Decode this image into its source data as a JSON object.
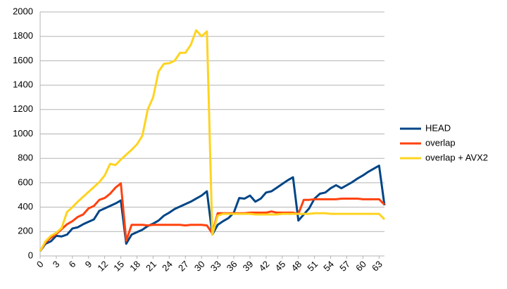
{
  "chart_data": {
    "type": "line",
    "x": [
      0,
      1,
      2,
      3,
      4,
      5,
      6,
      7,
      8,
      9,
      10,
      11,
      12,
      13,
      14,
      15,
      16,
      17,
      18,
      19,
      20,
      21,
      22,
      23,
      24,
      25,
      26,
      27,
      28,
      29,
      30,
      31,
      32,
      33,
      34,
      35,
      36,
      37,
      38,
      39,
      40,
      41,
      42,
      43,
      44,
      45,
      46,
      47,
      48,
      49,
      50,
      51,
      52,
      53,
      54,
      55,
      56,
      57,
      58,
      59,
      60,
      61,
      62,
      63,
      64
    ],
    "series": [
      {
        "name": "HEAD",
        "color": "#004586",
        "values": [
          40,
          100,
          120,
          165,
          160,
          175,
          225,
          235,
          260,
          280,
          300,
          370,
          390,
          410,
          430,
          455,
          100,
          175,
          195,
          215,
          245,
          265,
          290,
          330,
          355,
          385,
          405,
          425,
          445,
          470,
          495,
          530,
          175,
          255,
          285,
          310,
          355,
          475,
          470,
          495,
          445,
          470,
          520,
          530,
          560,
          590,
          620,
          645,
          290,
          340,
          390,
          470,
          510,
          520,
          555,
          580,
          555,
          580,
          605,
          635,
          660,
          690,
          715,
          740,
          415
        ]
      },
      {
        "name": "overlap",
        "color": "#ff420e",
        "values": [
          40,
          110,
          150,
          180,
          220,
          260,
          285,
          320,
          340,
          390,
          410,
          460,
          475,
          510,
          560,
          595,
          125,
          255,
          255,
          255,
          250,
          255,
          255,
          255,
          255,
          255,
          255,
          250,
          255,
          255,
          255,
          250,
          185,
          350,
          350,
          350,
          350,
          350,
          350,
          355,
          355,
          355,
          355,
          365,
          355,
          355,
          355,
          355,
          345,
          460,
          460,
          465,
          465,
          465,
          465,
          465,
          470,
          470,
          470,
          470,
          465,
          465,
          465,
          465,
          420
        ]
      },
      {
        "name": "overlap + AVX2",
        "color": "#ffd320",
        "values": [
          40,
          120,
          165,
          190,
          230,
          360,
          400,
          445,
          485,
          525,
          565,
          605,
          660,
          755,
          745,
          790,
          830,
          870,
          915,
          985,
          1200,
          1300,
          1510,
          1575,
          1580,
          1600,
          1665,
          1665,
          1730,
          1850,
          1800,
          1840,
          175,
          330,
          345,
          345,
          345,
          345,
          345,
          345,
          340,
          340,
          340,
          340,
          340,
          345,
          345,
          345,
          345,
          345,
          345,
          350,
          350,
          350,
          345,
          345,
          345,
          345,
          345,
          345,
          345,
          345,
          345,
          345,
          300
        ]
      }
    ],
    "xlim": [
      0,
      64
    ],
    "xticks": [
      0,
      3,
      6,
      9,
      12,
      15,
      18,
      21,
      24,
      27,
      30,
      33,
      36,
      39,
      42,
      45,
      48,
      51,
      54,
      57,
      60,
      63
    ],
    "ylim": [
      0,
      2000
    ],
    "yticks": [
      0,
      200,
      400,
      600,
      800,
      1000,
      1200,
      1400,
      1600,
      1800,
      2000
    ],
    "grid": true,
    "legend": "right"
  }
}
